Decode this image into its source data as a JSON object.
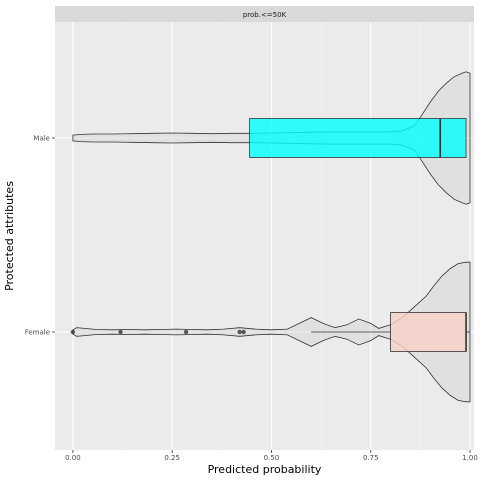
{
  "chart_data": {
    "type": "violin",
    "facet_label": "prob.<=50K",
    "xlabel": "Predicted probability",
    "ylabel": "Protected attributes",
    "xlim": [
      -0.045,
      1.01
    ],
    "x_ticks": [
      "0.00",
      "0.25",
      "0.50",
      "0.75",
      "1.00"
    ],
    "x_tick_values": [
      0,
      0.25,
      0.5,
      0.75,
      1.0
    ],
    "categories": [
      "Male",
      "Female"
    ],
    "grid": true,
    "orientation": "horizontal",
    "series": [
      {
        "category": "Male",
        "box_color": "#00FFFF",
        "box": {
          "q1": 0.445,
          "median": 0.925,
          "q3": 0.99,
          "whisker_low": 0.445,
          "whisker_high": 0.99
        },
        "outliers": [],
        "violin_x": [
          0.0,
          0.02,
          0.05,
          0.1,
          0.15,
          0.2,
          0.25,
          0.3,
          0.35,
          0.4,
          0.45,
          0.5,
          0.55,
          0.6,
          0.65,
          0.7,
          0.75,
          0.8,
          0.83,
          0.86,
          0.88,
          0.9,
          0.92,
          0.94,
          0.96,
          0.98,
          0.99,
          1.0
        ],
        "violin_w": [
          0.04,
          0.05,
          0.055,
          0.055,
          0.06,
          0.065,
          0.07,
          0.065,
          0.06,
          0.065,
          0.065,
          0.07,
          0.075,
          0.08,
          0.085,
          0.085,
          0.085,
          0.085,
          0.1,
          0.17,
          0.33,
          0.5,
          0.65,
          0.76,
          0.85,
          0.9,
          0.92,
          0.9
        ]
      },
      {
        "category": "Female",
        "box_color": "#F8D1C8",
        "box": {
          "q1": 0.8,
          "median": 0.99,
          "q3": 0.99,
          "whisker_low": 0.6,
          "whisker_high": 1.0
        },
        "outliers": [
          0.0,
          0.12,
          0.285,
          0.42,
          0.43
        ],
        "violin_x": [
          0.0,
          0.01,
          0.03,
          0.06,
          0.1,
          0.14,
          0.18,
          0.22,
          0.26,
          0.3,
          0.34,
          0.38,
          0.42,
          0.46,
          0.5,
          0.54,
          0.57,
          0.6,
          0.63,
          0.66,
          0.69,
          0.72,
          0.75,
          0.77,
          0.8,
          0.83,
          0.86,
          0.89,
          0.91,
          0.93,
          0.95,
          0.97,
          0.99,
          1.0
        ],
        "violin_w": [
          0.03,
          0.06,
          0.05,
          0.035,
          0.03,
          0.035,
          0.03,
          0.035,
          0.04,
          0.035,
          0.03,
          0.04,
          0.06,
          0.04,
          0.03,
          0.04,
          0.12,
          0.2,
          0.12,
          0.06,
          0.1,
          0.18,
          0.12,
          0.05,
          0.1,
          0.2,
          0.35,
          0.5,
          0.65,
          0.78,
          0.88,
          0.95,
          0.97,
          0.97
        ]
      }
    ]
  }
}
